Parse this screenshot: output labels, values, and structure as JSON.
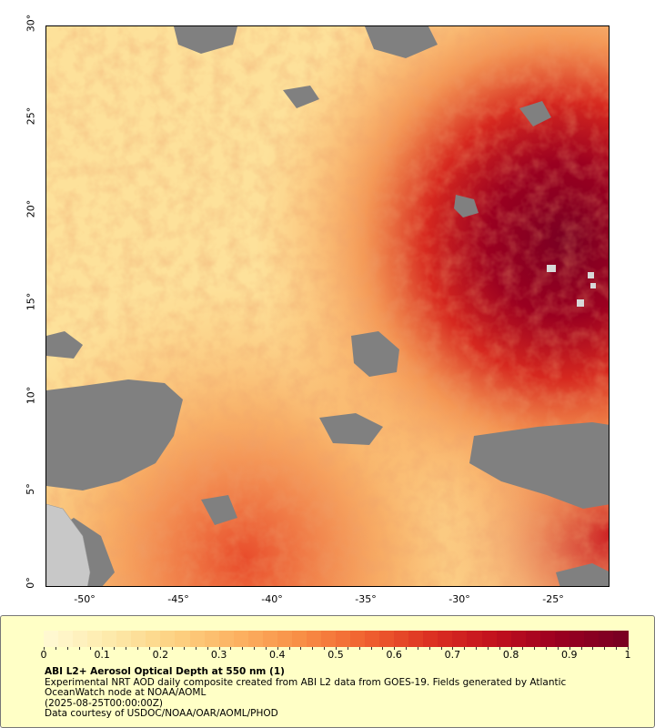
{
  "map": {
    "lat_ticks": [
      "0°",
      "5°",
      "10°",
      "15°",
      "20°",
      "25°",
      "30°"
    ],
    "lon_ticks": [
      "-50°",
      "-45°",
      "-40°",
      "-35°",
      "-30°",
      "-25°"
    ],
    "lat_range": [
      0,
      30
    ],
    "lon_range": [
      -52,
      -22
    ]
  },
  "legend": {
    "colorbar_labels": [
      "0",
      "0.1",
      "0.2",
      "0.3",
      "0.4",
      "0.5",
      "0.6",
      "0.7",
      "0.8",
      "0.9",
      "1"
    ],
    "colors": [
      "#fff8d0",
      "#fde9a8",
      "#fdd080",
      "#fcb060",
      "#f88c44",
      "#f0602f",
      "#dc3122",
      "#c2101e",
      "#9b0020",
      "#7a0022"
    ],
    "title": "ABI L2+ Aerosol Optical Depth at 550 nm (1)",
    "line1": "Experimental NRT AOD daily composite created from ABI L2 data from GOES-19. Fields generated by Atlantic",
    "line2": "OceanWatch node at NOAA/AOML",
    "line3": "(2025-08-25T00:00:00Z)",
    "line4": "Data courtesy of USDOC/NOAA/OAR/AOML/PHOD"
  }
}
